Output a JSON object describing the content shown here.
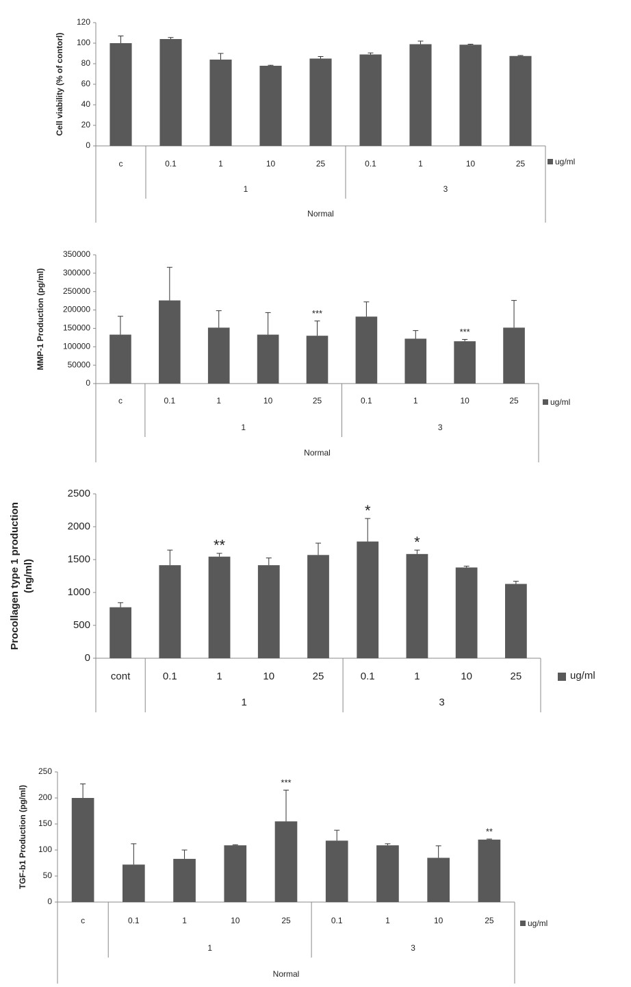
{
  "chart_data": [
    {
      "type": "bar",
      "ylabel": [
        "Cell viability (% of contorl)"
      ],
      "categories": [
        "c",
        "0.1",
        "1",
        "10",
        "25",
        "0.1",
        "1",
        "10",
        "25"
      ],
      "groups": [
        "1",
        "3"
      ],
      "top_group": "Normal",
      "series": [
        {
          "name": "ug/ml",
          "color": "#595959",
          "values": [
            100,
            104,
            84,
            78,
            85,
            89,
            99,
            98.5,
            87.5
          ],
          "errors": [
            7,
            1.5,
            6,
            0.5,
            2,
            1.5,
            3,
            0.5,
            0.5
          ]
        }
      ],
      "annotations": [
        null,
        null,
        null,
        null,
        null,
        null,
        null,
        null,
        null
      ],
      "ylim": [
        0,
        120
      ],
      "yticks": [
        0,
        20,
        40,
        60,
        80,
        100,
        120
      ]
    },
    {
      "type": "bar",
      "ylabel": [
        "MMP-1 Production (pg/ml)"
      ],
      "categories": [
        "c",
        "0.1",
        "1",
        "10",
        "25",
        "0.1",
        "1",
        "10",
        "25"
      ],
      "groups": [
        "1",
        "3"
      ],
      "top_group": "Normal",
      "series": [
        {
          "name": "ug/ml",
          "color": "#595959",
          "values": [
            133000,
            226000,
            152000,
            133000,
            130000,
            182000,
            122000,
            115000,
            152000
          ],
          "errors": [
            50000,
            90000,
            46000,
            60000,
            40000,
            40000,
            22000,
            5000,
            74000
          ]
        }
      ],
      "annotations": [
        null,
        null,
        null,
        null,
        "***",
        null,
        null,
        "***",
        null
      ],
      "ylim": [
        0,
        350000
      ],
      "yticks": [
        0,
        50000,
        100000,
        150000,
        200000,
        250000,
        300000,
        350000
      ]
    },
    {
      "type": "bar",
      "ylabel": [
        "Procollagen type 1 production",
        "(ng/ml)"
      ],
      "categories": [
        "cont",
        "0.1",
        "1",
        "10",
        "25",
        "0.1",
        "1",
        "10",
        "25"
      ],
      "groups": [
        "1",
        "3"
      ],
      "series": [
        {
          "name": "ug/ml",
          "color": "#595959",
          "values": [
            775,
            1415,
            1545,
            1415,
            1570,
            1775,
            1585,
            1380,
            1130
          ],
          "errors": [
            70,
            230,
            50,
            110,
            180,
            350,
            60,
            20,
            40
          ]
        }
      ],
      "annotations": [
        null,
        null,
        "**",
        null,
        null,
        "*",
        "*",
        null,
        null
      ],
      "ylim": [
        0,
        2500
      ],
      "yticks": [
        0,
        500,
        1000,
        1500,
        2000,
        2500
      ]
    },
    {
      "type": "bar",
      "ylabel": [
        "TGF-b1 Production (pg/ml)"
      ],
      "categories": [
        "c",
        "0.1",
        "1",
        "10",
        "25",
        "0.1",
        "1",
        "10",
        "25"
      ],
      "groups": [
        "1",
        "3"
      ],
      "top_group": "Normal",
      "series": [
        {
          "name": "ug/ml",
          "color": "#595959",
          "values": [
            200,
            72,
            83,
            109,
            155,
            118,
            109,
            85,
            120
          ],
          "errors": [
            27,
            40,
            17,
            1,
            60,
            20,
            3,
            23,
            1
          ]
        }
      ],
      "annotations": [
        null,
        null,
        null,
        null,
        "***",
        null,
        null,
        null,
        "**"
      ],
      "ylim": [
        0,
        250
      ],
      "yticks": [
        0,
        50,
        100,
        150,
        200,
        250
      ]
    }
  ]
}
